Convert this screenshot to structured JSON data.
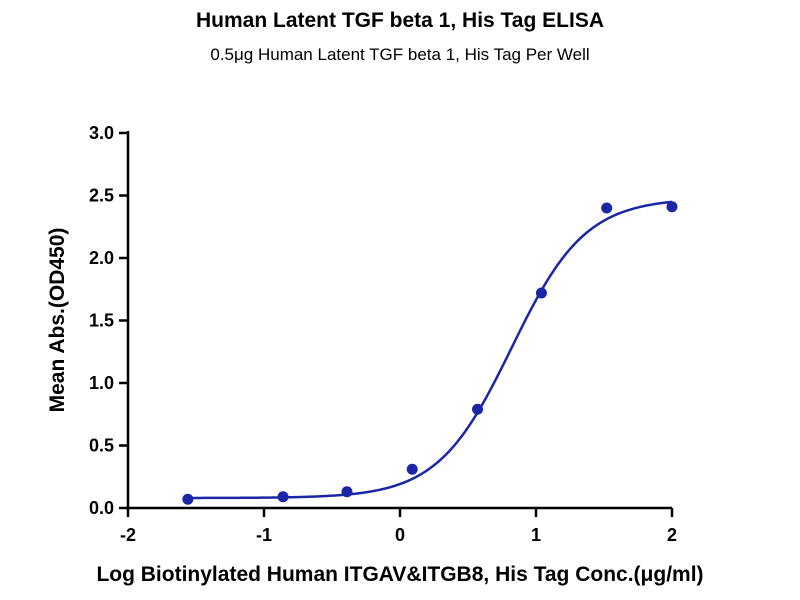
{
  "chart_data": {
    "type": "scatter",
    "title": "Human Latent TGF beta 1, His Tag ELISA",
    "subtitle": "0.5μg Human Latent TGF beta 1, His Tag Per Well",
    "xlabel": "Log Biotinylated Human ITGAV&ITGB8, His Tag Conc.(μg/ml)",
    "ylabel": "Mean Abs.(OD450)",
    "xlim": [
      -2,
      2
    ],
    "ylim": [
      0,
      3.0
    ],
    "x_ticks": [
      "-2",
      "-1",
      "0",
      "1",
      "2"
    ],
    "y_ticks": [
      "0.0",
      "0.5",
      "1.0",
      "1.5",
      "2.0",
      "2.5",
      "3.0"
    ],
    "grid": false,
    "points": [
      {
        "x": -1.56,
        "y": 0.07
      },
      {
        "x": -0.86,
        "y": 0.09
      },
      {
        "x": -0.39,
        "y": 0.13
      },
      {
        "x": 0.09,
        "y": 0.31
      },
      {
        "x": 0.57,
        "y": 0.79
      },
      {
        "x": 1.04,
        "y": 1.72
      },
      {
        "x": 1.52,
        "y": 2.4
      },
      {
        "x": 2.0,
        "y": 2.41
      }
    ],
    "fit": {
      "model": "4PL",
      "bottom": 0.08,
      "top": 2.48,
      "log_ec50": 0.82,
      "hill_slope": 1.6,
      "x_range": [
        -1.56,
        2.0
      ]
    },
    "color": "#1a26a6"
  }
}
